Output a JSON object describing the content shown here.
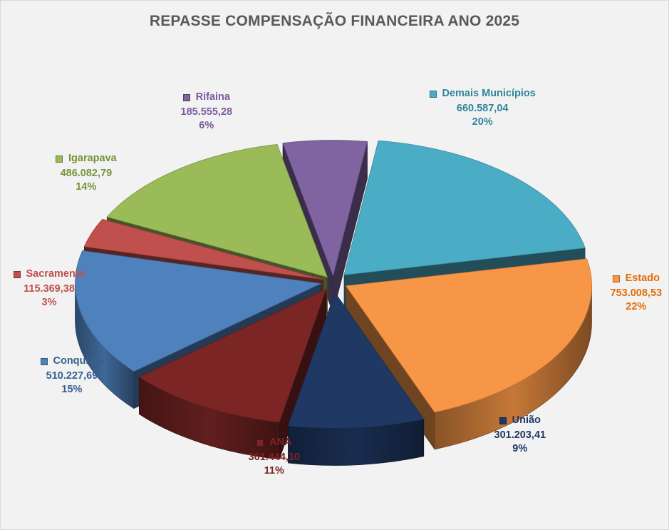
{
  "chart_data": {
    "type": "pie",
    "title": "REPASSE COMPENSAÇÃO FINANCEIRA ANO 2025",
    "slices": [
      {
        "label": "Demais Municípios",
        "value": 660587.04,
        "value_text": "660.587,04",
        "percent_text": "20%",
        "color": "#4bacc6"
      },
      {
        "label": "Estado",
        "value": 753008.53,
        "value_text": "753.008,53",
        "percent_text": "22%",
        "color": "#f79646"
      },
      {
        "label": "União",
        "value": 301203.41,
        "value_text": "301.203,41",
        "percent_text": "9%",
        "color": "#1f3864"
      },
      {
        "label": "ANA",
        "value": 361444.1,
        "value_text": "361.444,10",
        "percent_text": "11%",
        "color": "#7b2525"
      },
      {
        "label": "Conquista",
        "value": 510227.69,
        "value_text": "510.227,69",
        "percent_text": "15%",
        "color": "#4f81bd"
      },
      {
        "label": "Sacramento",
        "value": 115369.38,
        "value_text": "115.369,38",
        "percent_text": "3%",
        "color": "#c0504d"
      },
      {
        "label": "Igarapava",
        "value": 486082.79,
        "value_text": "486.082,79",
        "percent_text": "14%",
        "color": "#9bbb59"
      },
      {
        "label": "Rifaina",
        "value": 185555.28,
        "value_text": "185.555,28",
        "percent_text": "6%",
        "color": "#8064a2"
      }
    ],
    "label_colors": [
      "#31849b",
      "#e36c09",
      "#1f3864",
      "#7b2525",
      "#366092",
      "#c0504d",
      "#76923c",
      "#7c5ba0"
    ],
    "legend": "none",
    "style": "exploded 3D pie"
  }
}
